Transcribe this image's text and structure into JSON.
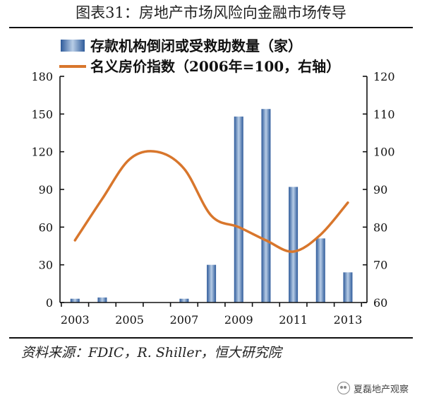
{
  "figure": {
    "title": "图表31：房地产市场风险向金融市场传导",
    "source_note": "资料来源：FDIC，R. Shiller，恒大研究院",
    "watermark": "夏磊地产观察"
  },
  "chart_data": {
    "type": "bar+line",
    "title": "",
    "xlabel": "",
    "ylabel_left": "",
    "ylabel_right": "",
    "x_tick_labels": [
      "2003",
      "2005",
      "2007",
      "2009",
      "2011",
      "2013"
    ],
    "x_years": [
      2003,
      2004,
      2005,
      2006,
      2007,
      2008,
      2009,
      2010,
      2011,
      2012,
      2013
    ],
    "ylim_left": [
      0,
      180
    ],
    "yticks_left": [
      0,
      30,
      60,
      90,
      120,
      150,
      180
    ],
    "ylim_right": [
      60,
      120
    ],
    "yticks_right": [
      60,
      70,
      80,
      90,
      100,
      110,
      120
    ],
    "grid": false,
    "legend_position": "top",
    "series": [
      {
        "name": "存款机构倒闭或受救助数量（家）",
        "type": "bar",
        "axis": "left",
        "color": "#4a78b8",
        "values": [
          3,
          4,
          0,
          0,
          3,
          30,
          148,
          154,
          92,
          51,
          24
        ]
      },
      {
        "name": "名义房价指数（2006年=100，右轴）",
        "type": "line",
        "axis": "right",
        "color": "#d8762c",
        "values": [
          76.5,
          87.5,
          98,
          100,
          95.5,
          83,
          80,
          76.5,
          73.5,
          78,
          86.5
        ]
      }
    ]
  }
}
